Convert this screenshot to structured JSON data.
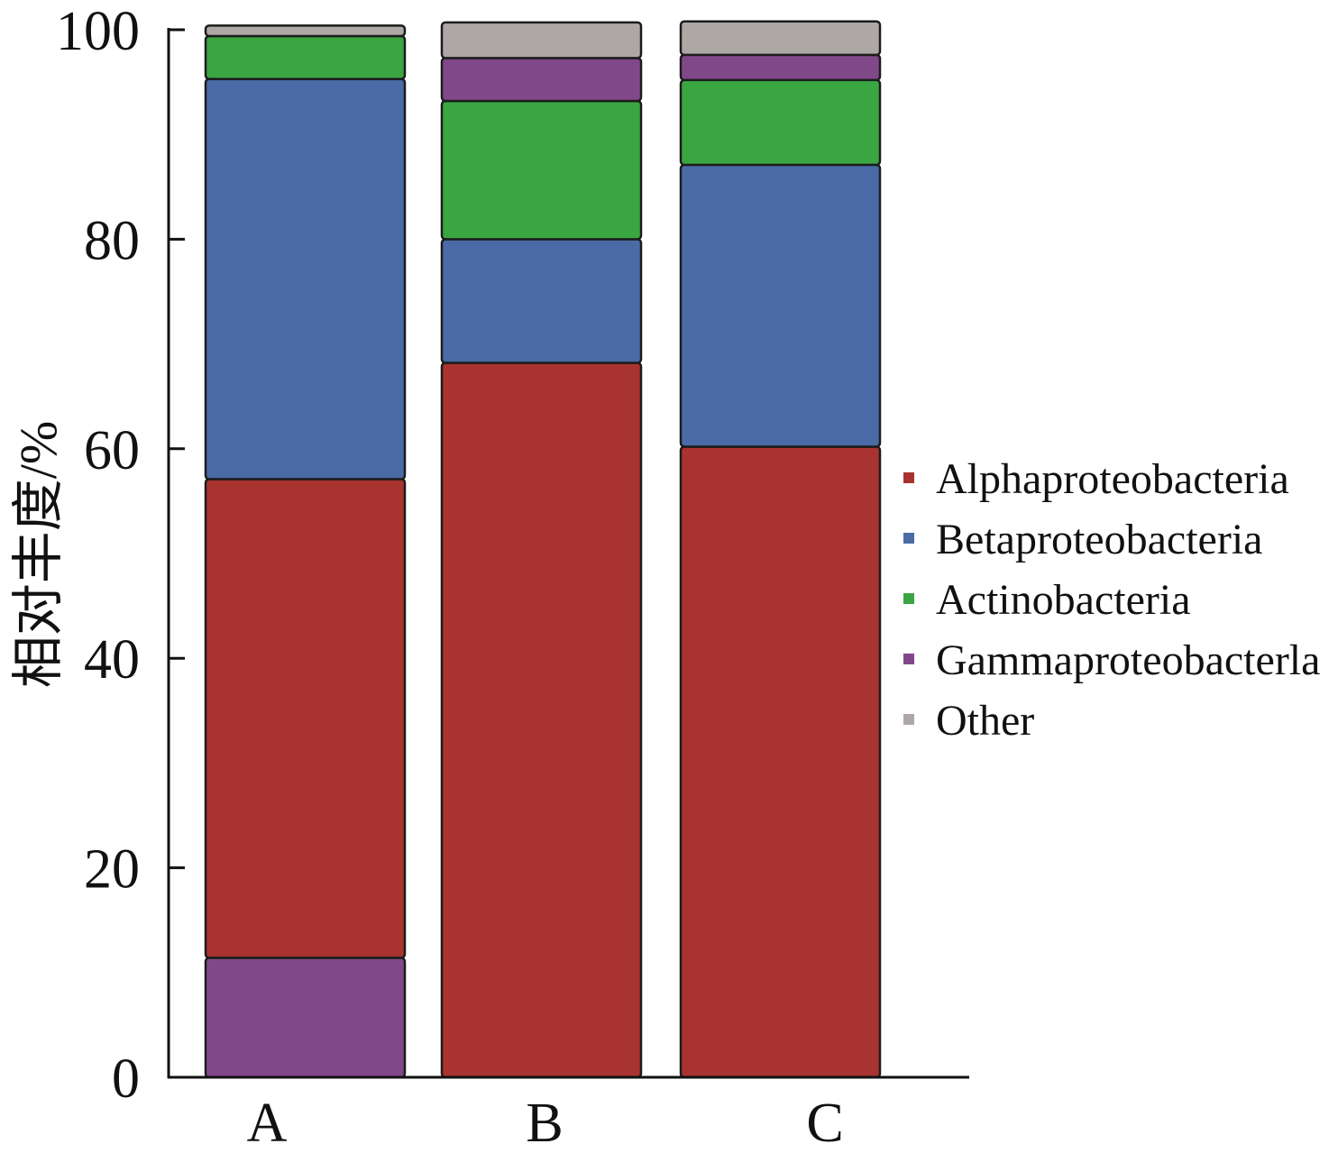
{
  "chart_data": {
    "type": "bar",
    "stacked": true,
    "title": "",
    "xlabel": "",
    "ylabel": "相对丰度/%",
    "ylim": [
      0,
      100
    ],
    "yticks": [
      0,
      20,
      40,
      60,
      80,
      100
    ],
    "grid": false,
    "legend_position": "right",
    "categories": [
      "A",
      "B",
      "C"
    ],
    "series": [
      {
        "name": "Alphaproteobacteria",
        "color": "#A83330",
        "values": [
          45.7,
          68.2,
          60.2
        ]
      },
      {
        "name": "Betaproteobacteria",
        "color": "#4A6BA6",
        "values": [
          38.2,
          11.8,
          26.9
        ]
      },
      {
        "name": "Actinobacteria",
        "color": "#39A642",
        "values": [
          4.1,
          13.2,
          8.1
        ]
      },
      {
        "name": "Gammaproteobacterla",
        "color": "#814889",
        "values": [
          11.4,
          4.1,
          2.4
        ]
      },
      {
        "name": "Other",
        "color": "#ADA7A5",
        "values": [
          1.0,
          3.4,
          3.2
        ]
      }
    ],
    "stack_order": [
      [
        3,
        0,
        1,
        2,
        4
      ],
      [
        0,
        1,
        2,
        3,
        4
      ],
      [
        0,
        1,
        2,
        3,
        4
      ]
    ]
  }
}
